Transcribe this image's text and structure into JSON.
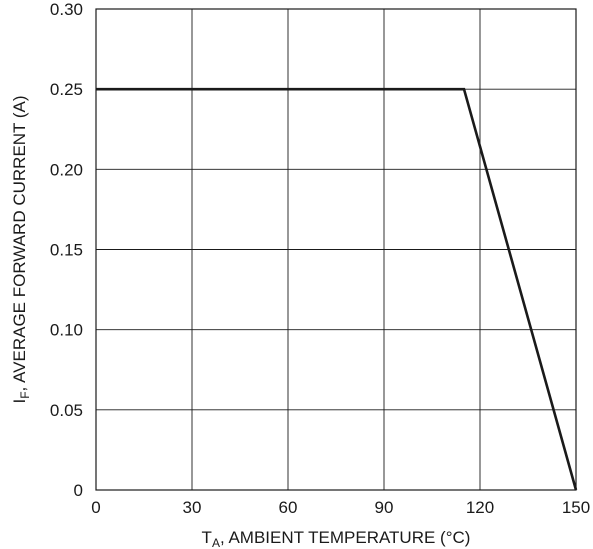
{
  "chart_data": {
    "type": "line",
    "title": "",
    "xlabel": {
      "main": "T",
      "sub": "A",
      "rest": ", AMBIENT TEMPERATURE (°C)"
    },
    "ylabel": {
      "main": "I",
      "sub": "F",
      "rest": ", AVERAGE FORWARD CURRENT (A)"
    },
    "xlim": [
      0,
      150
    ],
    "ylim": [
      0,
      0.3
    ],
    "x_ticks": [
      0,
      30,
      60,
      90,
      120,
      150
    ],
    "x_tick_labels": [
      "0",
      "30",
      "60",
      "90",
      "120",
      "150"
    ],
    "y_ticks": [
      0,
      0.05,
      0.1,
      0.15,
      0.2,
      0.25,
      0.3
    ],
    "y_tick_labels": [
      "0",
      "0.05",
      "0.10",
      "0.15",
      "0.20",
      "0.25",
      "0.30"
    ],
    "grid": true,
    "series": [
      {
        "x": [
          0,
          115,
          150
        ],
        "y": [
          0.25,
          0.25,
          0
        ],
        "color": "#1a1a1a"
      }
    ]
  }
}
